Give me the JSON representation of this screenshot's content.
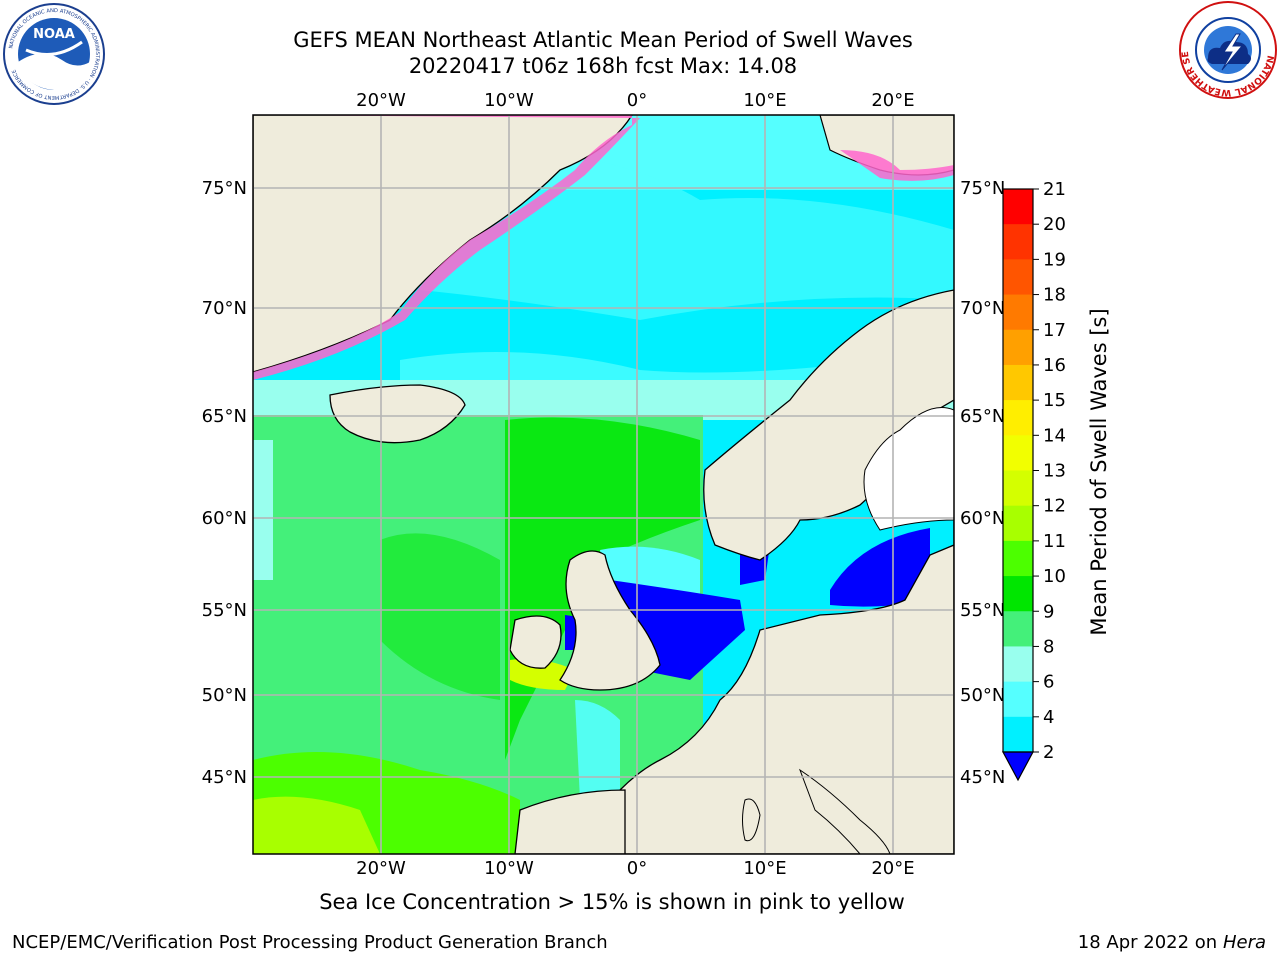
{
  "header": {
    "title_line1": "GEFS MEAN Northeast Atlantic Mean Period of Swell Waves",
    "title_line2": "20220417 t06z 168h fcst   Max: 14.08"
  },
  "logos": {
    "left": "NOAA",
    "left_ring": "NATIONAL OCEANIC AND ATMOSPHERIC ADMINISTRATION · U.S. DEPARTMENT OF COMMERCE",
    "right_ring": "NATIONAL WEATHER SERVICE"
  },
  "map": {
    "lon_ticks": [
      "20°W",
      "10°W",
      "0°",
      "10°E",
      "20°E"
    ],
    "lat_ticks": [
      "75°N",
      "70°N",
      "65°N",
      "60°N",
      "55°N",
      "50°N",
      "45°N"
    ],
    "land_color": "#efecdc",
    "grid_color": "#b4b4b4"
  },
  "colorbar": {
    "label": "Mean Period of Swell Waves [s]",
    "ticks": [
      "21",
      "20",
      "19",
      "18",
      "17",
      "16",
      "15",
      "14",
      "13",
      "12",
      "11",
      "10",
      "9",
      "8",
      "6",
      "4",
      "2"
    ],
    "colors": [
      "#ff0000",
      "#ff3300",
      "#ff5500",
      "#ff7a00",
      "#ffa000",
      "#ffc800",
      "#ffee00",
      "#f2ff00",
      "#d4ff00",
      "#a8ff00",
      "#4cff00",
      "#00e600",
      "#44f07a",
      "#99ffee",
      "#55ffff",
      "#00f0ff",
      "#0070ff",
      "#0000ff"
    ]
  },
  "caption": "Sea Ice Concentration > 15% is shown in pink to yellow",
  "footer": {
    "left": "NCEP/EMC/Verification Post Processing Product Generation Branch",
    "right_date": "18 Apr 2022 on ",
    "right_host": "Hera"
  }
}
